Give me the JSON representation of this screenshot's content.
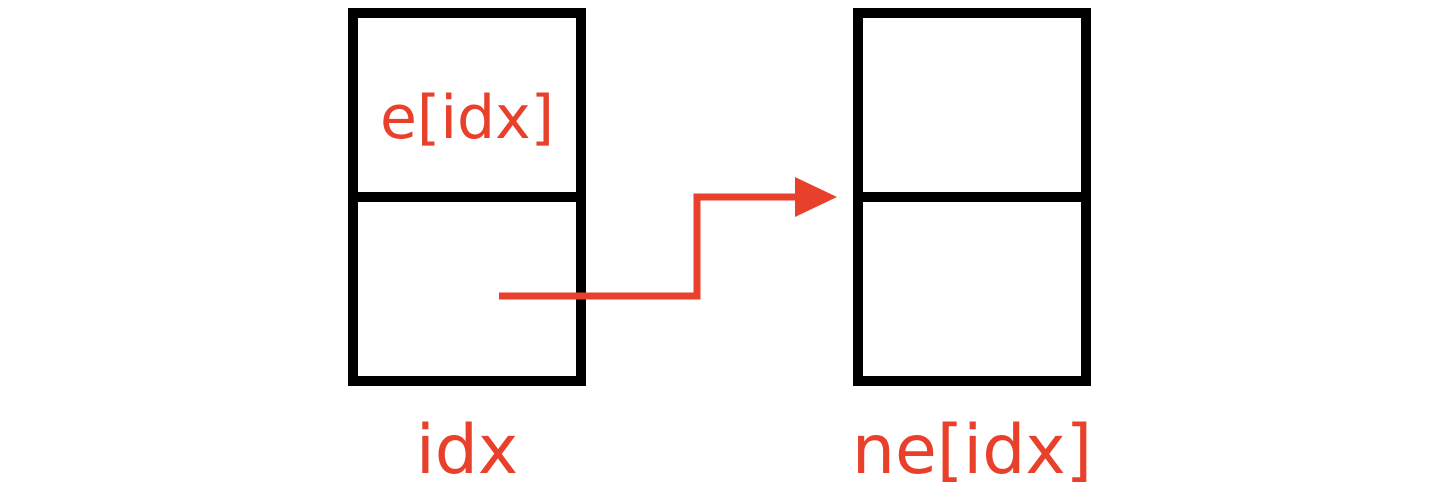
{
  "diagram": {
    "left_node": {
      "value_label": "e[idx]",
      "index_label": "idx"
    },
    "right_node": {
      "index_label": "ne[idx]"
    }
  },
  "colors": {
    "box_stroke": "#000000",
    "accent": "#e8402a",
    "background": "#ffffff"
  }
}
